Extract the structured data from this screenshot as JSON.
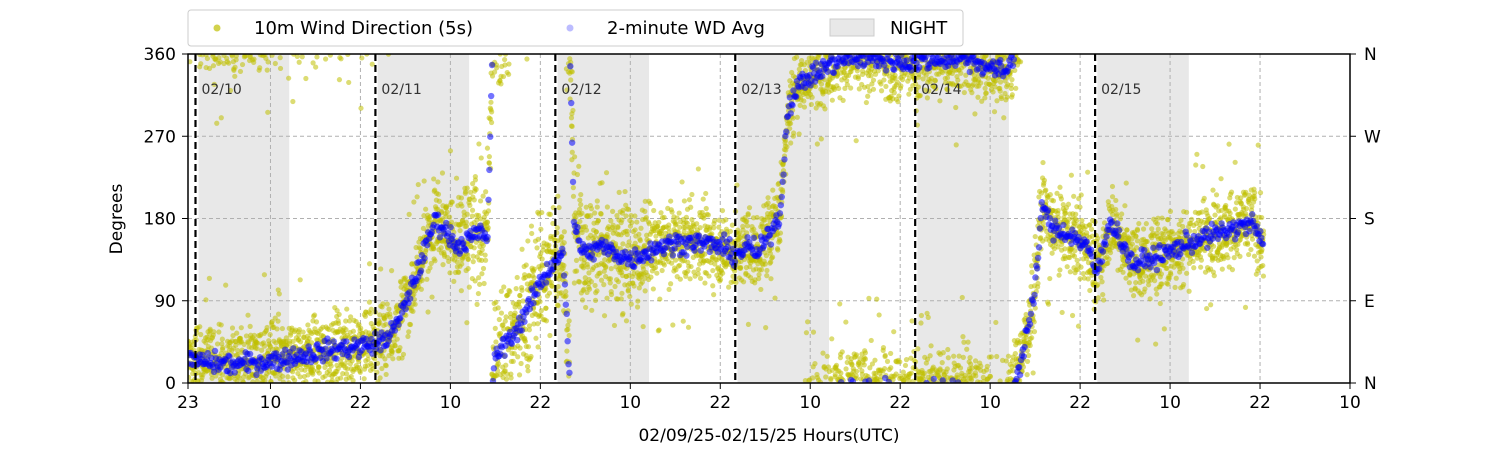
{
  "chart_data": {
    "type": "scatter",
    "title": "",
    "xlabel": "02/09/25-02/15/25  Hours(UTC)",
    "ylabel": "Degrees",
    "x_range_hours": [
      0,
      155
    ],
    "x_ticks": [
      {
        "h": 0,
        "label": "23"
      },
      {
        "h": 11,
        "label": "10"
      },
      {
        "h": 23,
        "label": "22"
      },
      {
        "h": 35,
        "label": "10"
      },
      {
        "h": 47,
        "label": "22"
      },
      {
        "h": 59,
        "label": "10"
      },
      {
        "h": 71,
        "label": "22"
      },
      {
        "h": 83,
        "label": "10"
      },
      {
        "h": 95,
        "label": "22"
      },
      {
        "h": 107,
        "label": "10"
      },
      {
        "h": 119,
        "label": "22"
      },
      {
        "h": 131,
        "label": "10"
      },
      {
        "h": 143,
        "label": "22"
      },
      {
        "h": 155,
        "label": "10"
      }
    ],
    "ylim": [
      0,
      360
    ],
    "y_ticks_left": [
      "0",
      "90",
      "180",
      "270",
      "360"
    ],
    "y_ticks_right": [
      "N",
      "E",
      "S",
      "W",
      "N"
    ],
    "grid": true,
    "legend_position": "top",
    "legend": [
      {
        "name": "10m Wind Direction (5s)",
        "color": "#bfbf00",
        "style": "dot"
      },
      {
        "name": "2-minute WD Avg",
        "color": "#0000ff",
        "style": "dot-faded"
      },
      {
        "name": "NIGHT",
        "color": "#d9d9d9",
        "style": "patch"
      }
    ],
    "night_periods": [
      [
        1.4,
        13.5
      ],
      [
        25.3,
        37.5
      ],
      [
        49.3,
        61.5
      ],
      [
        73.3,
        85.5
      ],
      [
        97.3,
        109.5
      ],
      [
        121.3,
        133.5
      ]
    ],
    "day_markers": [
      {
        "h": 1,
        "label": "02/10"
      },
      {
        "h": 25,
        "label": "02/11"
      },
      {
        "h": 49,
        "label": "02/12"
      },
      {
        "h": 73,
        "label": "02/13"
      },
      {
        "h": 97,
        "label": "02/14"
      },
      {
        "h": 121,
        "label": "02/15"
      }
    ],
    "series_2min_avg_approx": {
      "name": "2-minute WD Avg",
      "hours": [
        0,
        6,
        12,
        18,
        23,
        26,
        28,
        31,
        33,
        36,
        39,
        40,
        40.5,
        41,
        44,
        47,
        49,
        50,
        51,
        51.5,
        53,
        55,
        59,
        63,
        67,
        71,
        73,
        75,
        76,
        79,
        80,
        81,
        82,
        84,
        86,
        88,
        92,
        96,
        100,
        104,
        107,
        109,
        110,
        111,
        113,
        114,
        115,
        117,
        120,
        121,
        122,
        123,
        126,
        130,
        134,
        138,
        142,
        143.5
      ],
      "values": [
        25,
        20,
        25,
        35,
        40,
        45,
        65,
        130,
        180,
        150,
        165,
        160,
        340,
        30,
        60,
        110,
        135,
        145,
        350,
        170,
        140,
        150,
        135,
        150,
        155,
        150,
        140,
        150,
        140,
        185,
        300,
        320,
        330,
        340,
        350,
        355,
        355,
        350,
        355,
        355,
        345,
        340,
        355,
        20,
        100,
        200,
        170,
        165,
        150,
        120,
        140,
        180,
        130,
        140,
        155,
        165,
        175,
        150
      ]
    }
  }
}
